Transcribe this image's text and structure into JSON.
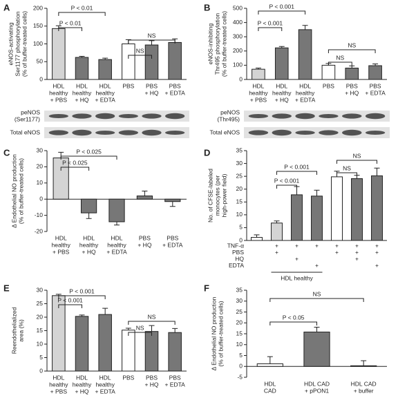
{
  "chart_data": [
    {
      "type": "bar",
      "panel": "A",
      "ylabel": [
        "eNOS-activating",
        "Ser1177 phosphorylation",
        "(% of buffer-treated cells)"
      ],
      "categories": [
        [
          "HDL",
          "healthy",
          "+ PBS"
        ],
        [
          "HDL",
          "healthy",
          "+ HQ"
        ],
        [
          "HDL",
          "healthy",
          "+ EDTA"
        ],
        [
          "PBS"
        ],
        [
          "PBS",
          "+ HQ"
        ],
        [
          "PBS",
          "+ EDTA"
        ]
      ],
      "values": [
        143,
        62,
        56,
        100,
        97,
        104
      ],
      "errors": [
        8,
        3,
        4,
        12,
        12,
        10
      ],
      "colors": [
        "#d4d4d4",
        "#777777",
        "#777777",
        "#ffffff",
        "#777777",
        "#777777"
      ],
      "ylim": [
        0,
        200
      ],
      "yticks": [
        0,
        50,
        100,
        150,
        200
      ],
      "annotations": [
        "P < 0.01",
        "P < 0.01",
        "NS",
        "NS"
      ],
      "blot": [
        [
          "peNOS",
          "(Ser1177)"
        ],
        [
          "Total eNOS"
        ]
      ]
    },
    {
      "type": "bar",
      "panel": "B",
      "ylabel": [
        "eNOS-inhibiting",
        "Thr495 phosphorylation",
        "(% of buffer-treated cells)"
      ],
      "categories": [
        [
          "HDL",
          "healthy",
          "+ PBS"
        ],
        [
          "HDL",
          "healthy",
          "+ HQ"
        ],
        [
          "HDL",
          "healthy",
          "+ EDTA"
        ],
        [
          "PBS"
        ],
        [
          "PBS",
          "+ HQ"
        ],
        [
          "PBS",
          "+ EDTA"
        ]
      ],
      "values": [
        72,
        222,
        350,
        100,
        80,
        97
      ],
      "errors": [
        8,
        10,
        30,
        12,
        15,
        12
      ],
      "colors": [
        "#d4d4d4",
        "#777777",
        "#777777",
        "#ffffff",
        "#777777",
        "#777777"
      ],
      "ylim": [
        0,
        500
      ],
      "yticks": [
        0,
        100,
        200,
        300,
        400,
        500
      ],
      "annotations": [
        "P < 0.001",
        "P < 0.001",
        "NS",
        "NS"
      ],
      "blot": [
        [
          "peNOS",
          "(Thr495)"
        ],
        [
          "Total eNOS"
        ]
      ]
    },
    {
      "type": "bar",
      "panel": "C",
      "ylabel": [
        "Δ Endothelial NO production",
        "(% of buffer-treated cells)"
      ],
      "categories": [
        [
          "HDL",
          "healthy",
          "+ PBS"
        ],
        [
          "HDL",
          "healthy",
          "+ HQ"
        ],
        [
          "HDL",
          "healthy",
          "+ EDTA"
        ],
        [
          "PBS",
          "+ HQ"
        ],
        [
          "PBS",
          "+ EDTA"
        ]
      ],
      "values": [
        25.5,
        -8.5,
        -14,
        2,
        -1.5
      ],
      "errors": [
        3.5,
        3.5,
        2,
        3,
        3
      ],
      "colors": [
        "#d4d4d4",
        "#777777",
        "#777777",
        "#777777",
        "#777777"
      ],
      "ylim": [
        -20,
        30
      ],
      "yticks": [
        -20,
        -10,
        0,
        10,
        20,
        30
      ],
      "annotations": [
        "P < 0.025",
        "P < 0.025"
      ]
    },
    {
      "type": "bar",
      "panel": "D",
      "ylabel": [
        "No. of CFSE-labeled",
        "monocytes (per",
        "high-power field)"
      ],
      "categories": [
        null,
        null,
        null,
        null,
        null,
        null,
        null
      ],
      "values": [
        1.2,
        6.8,
        17.8,
        17.3,
        24.8,
        24.1,
        25.2
      ],
      "errors": [
        1,
        0.8,
        3.2,
        2.3,
        2.2,
        1.3,
        3
      ],
      "colors": [
        "#ffffff",
        "#d4d4d4",
        "#777777",
        "#777777",
        "#ffffff",
        "#777777",
        "#777777"
      ],
      "ylim": [
        0,
        35
      ],
      "yticks": [
        0,
        5,
        10,
        15,
        20,
        25,
        30,
        35
      ],
      "annotations": [
        "P < 0.001",
        "P < 0.001",
        "NS",
        "NS"
      ],
      "treatments": [
        {
          "label": "TNF-α",
          "marks": [
            null,
            "+",
            "+",
            "+",
            "+",
            "+",
            "+"
          ]
        },
        {
          "label": "PBS",
          "marks": [
            null,
            "+",
            null,
            null,
            "+",
            "+",
            "+"
          ]
        },
        {
          "label": "HQ",
          "marks": [
            null,
            null,
            "+",
            null,
            null,
            "+",
            null
          ]
        },
        {
          "label": "EDTA",
          "marks": [
            null,
            null,
            null,
            "+",
            null,
            null,
            "+"
          ]
        }
      ],
      "group_label": "HDL healthy"
    },
    {
      "type": "bar",
      "panel": "E",
      "ylabel": [
        "Reendothelialized",
        "area (%)"
      ],
      "categories": [
        [
          "HDL",
          "healthy",
          "+ PBS"
        ],
        [
          "HDL",
          "healthy",
          "+ HQ"
        ],
        [
          "HDL",
          "healthy",
          "+ EDTA"
        ],
        [
          "PBS"
        ],
        [
          "PBS",
          "+ HQ"
        ],
        [
          "PBS",
          "+ EDTA"
        ]
      ],
      "values": [
        28,
        20.3,
        21,
        15.2,
        14.7,
        14.3
      ],
      "errors": [
        0.5,
        0.5,
        2.3,
        0.7,
        2.2,
        1.5
      ],
      "colors": [
        "#d4d4d4",
        "#777777",
        "#777777",
        "#ffffff",
        "#777777",
        "#777777"
      ],
      "ylim": [
        0,
        30
      ],
      "yticks": [
        0,
        5,
        10,
        15,
        20,
        25,
        30
      ],
      "annotations": [
        "P < 0.001",
        "P < 0.001",
        "NS",
        "NS"
      ]
    },
    {
      "type": "bar",
      "panel": "F",
      "ylabel": [
        "Δ Endothelial NO production",
        "(% of buffer-treated cells)"
      ],
      "categories": [
        [
          "HDL",
          "CAD"
        ],
        [
          "HDL CAD",
          "+ pPON1"
        ],
        [
          "HDL CAD",
          "+ buffer"
        ]
      ],
      "values": [
        1.2,
        15.8,
        0.3
      ],
      "errors": [
        3.3,
        2.2,
        2.3
      ],
      "colors": [
        "#ffffff",
        "#777777",
        "#777777"
      ],
      "ylim": [
        -5,
        35
      ],
      "yticks": [
        -5,
        0,
        5,
        10,
        15,
        20,
        25,
        30,
        35
      ],
      "annotations": [
        "NS",
        "P < 0.05"
      ]
    }
  ]
}
